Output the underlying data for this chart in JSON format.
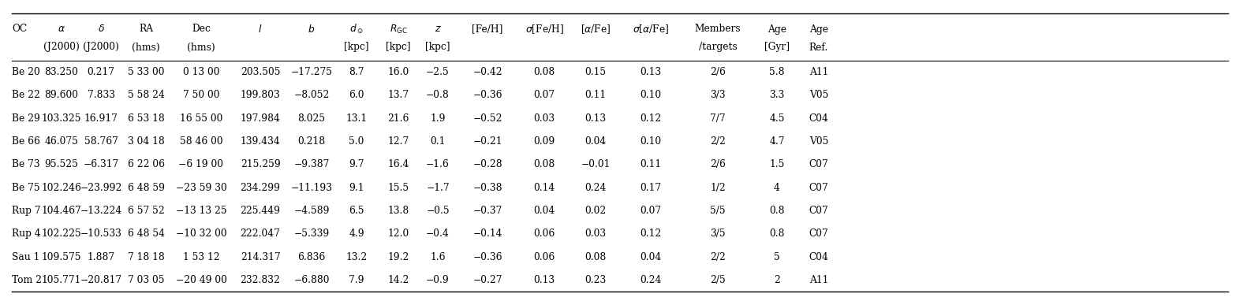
{
  "rows": [
    [
      "Be 20",
      "83.250",
      "0.217",
      "5 33 00",
      "0 13 00",
      "203.505",
      "−17.275",
      "8.7",
      "16.0",
      "−2.5",
      "−0.42",
      "0.08",
      "0.15",
      "0.13",
      "2/6",
      "5.8",
      "A11"
    ],
    [
      "Be 22",
      "89.600",
      "7.833",
      "5 58 24",
      "7 50 00",
      "199.803",
      "−8.052",
      "6.0",
      "13.7",
      "−0.8",
      "−0.36",
      "0.07",
      "0.11",
      "0.10",
      "3/3",
      "3.3",
      "V05"
    ],
    [
      "Be 29",
      "103.325",
      "16.917",
      "6 53 18",
      "16 55 00",
      "197.984",
      "8.025",
      "13.1",
      "21.6",
      "1.9",
      "−0.52",
      "0.03",
      "0.13",
      "0.12",
      "7/7",
      "4.5",
      "C04"
    ],
    [
      "Be 66",
      "46.075",
      "58.767",
      "3 04 18",
      "58 46 00",
      "139.434",
      "0.218",
      "5.0",
      "12.7",
      "0.1",
      "−0.21",
      "0.09",
      "0.04",
      "0.10",
      "2/2",
      "4.7",
      "V05"
    ],
    [
      "Be 73",
      "95.525",
      "−6.317",
      "6 22 06",
      "−6 19 00",
      "215.259",
      "−9.387",
      "9.7",
      "16.4",
      "−1.6",
      "−0.28",
      "0.08",
      "−0.01",
      "0.11",
      "2/6",
      "1.5",
      "C07"
    ],
    [
      "Be 75",
      "102.246",
      "−23.992",
      "6 48 59",
      "−23 59 30",
      "234.299",
      "−11.193",
      "9.1",
      "15.5",
      "−1.7",
      "−0.38",
      "0.14",
      "0.24",
      "0.17",
      "1/2",
      "4",
      "C07"
    ],
    [
      "Rup 7",
      "104.467",
      "−13.224",
      "6 57 52",
      "−13 13 25",
      "225.449",
      "−4.589",
      "6.5",
      "13.8",
      "−0.5",
      "−0.37",
      "0.04",
      "0.02",
      "0.07",
      "5/5",
      "0.8",
      "C07"
    ],
    [
      "Rup 4",
      "102.225",
      "−10.533",
      "6 48 54",
      "−10 32 00",
      "222.047",
      "−5.339",
      "4.9",
      "12.0",
      "−0.4",
      "−0.14",
      "0.06",
      "0.03",
      "0.12",
      "3/5",
      "0.8",
      "C07"
    ],
    [
      "Sau 1",
      "109.575",
      "1.887",
      "7 18 18",
      "1 53 12",
      "214.317",
      "6.836",
      "13.2",
      "19.2",
      "1.6",
      "−0.36",
      "0.06",
      "0.08",
      "0.04",
      "2/2",
      "5",
      "C04"
    ],
    [
      "Tom 2",
      "105.771",
      "−20.817",
      "7 03 05",
      "−20 49 00",
      "232.832",
      "−6.880",
      "7.9",
      "14.2",
      "−0.9",
      "−0.27",
      "0.13",
      "0.23",
      "0.24",
      "2/5",
      "2",
      "A11"
    ]
  ],
  "background_color": "#ffffff",
  "line_color": "#000000",
  "text_color": "#000000",
  "header_fontsize": 8.8,
  "data_fontsize": 8.8
}
